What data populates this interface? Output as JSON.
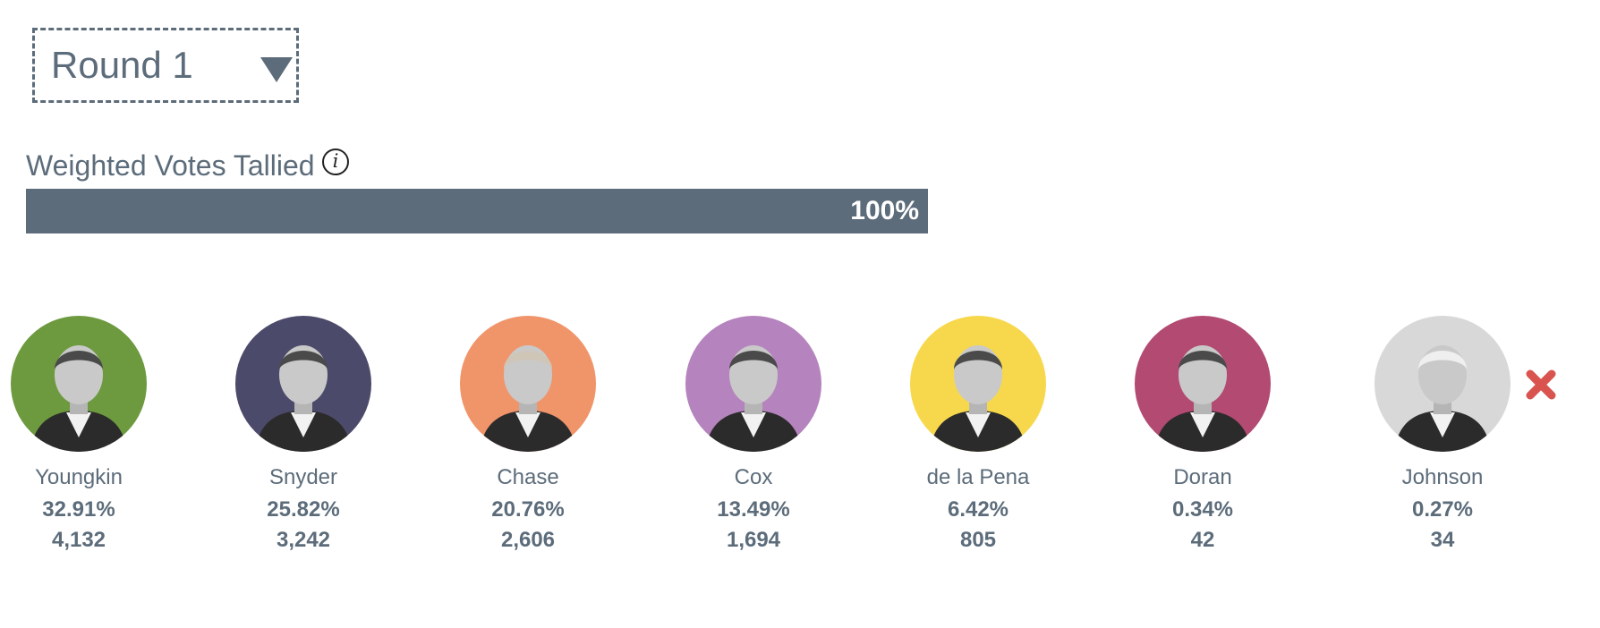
{
  "round_selector": {
    "value": "Round 1",
    "caret_icon": "triangle-down-icon"
  },
  "tally": {
    "title": "Weighted Votes Tallied",
    "info_icon": "info-icon",
    "info_glyph": "i",
    "progress_percent": 100,
    "progress_label": "100%"
  },
  "colors": {
    "text": "#5c6c7a",
    "bar": "#5c6c7a",
    "eliminated": "#d9534f"
  },
  "candidates": [
    {
      "name": "Youngkin",
      "percent": "32.91%",
      "votes": "4,132",
      "color": "#6d9a3f",
      "eliminated": false
    },
    {
      "name": "Snyder",
      "percent": "25.82%",
      "votes": "3,242",
      "color": "#4b4a6a",
      "eliminated": false
    },
    {
      "name": "Chase",
      "percent": "20.76%",
      "votes": "2,606",
      "color": "#f0946a",
      "eliminated": false
    },
    {
      "name": "Cox",
      "percent": "13.49%",
      "votes": "1,694",
      "color": "#b583bd",
      "eliminated": false
    },
    {
      "name": "de la Pena",
      "percent": "6.42%",
      "votes": "805",
      "color": "#f7d84c",
      "eliminated": false
    },
    {
      "name": "Doran",
      "percent": "0.34%",
      "votes": "42",
      "color": "#b24a72",
      "eliminated": false
    },
    {
      "name": "Johnson",
      "percent": "0.27%",
      "votes": "34",
      "color": "#d8d8d8",
      "eliminated": true,
      "eliminated_icon": "x-mark-icon"
    }
  ]
}
